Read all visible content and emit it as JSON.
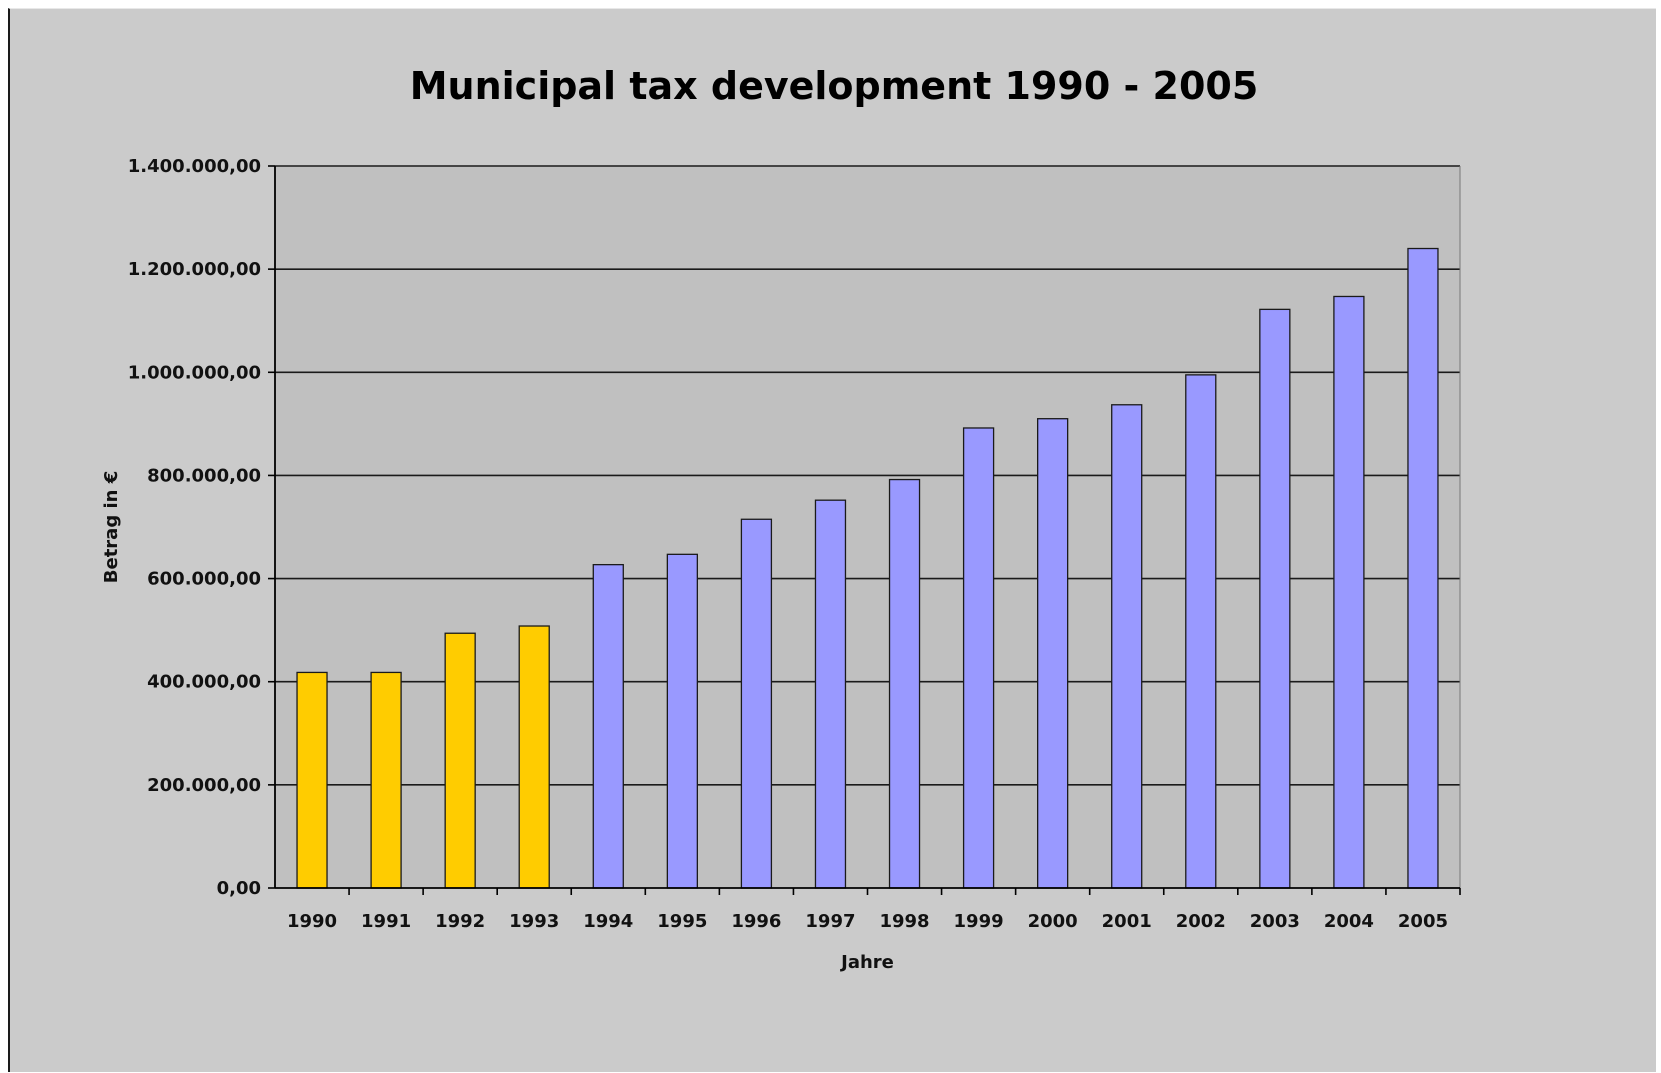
{
  "chart_data": {
    "type": "bar",
    "title": "Municipal tax development 1990 - 2005",
    "xlabel": "Jahre",
    "ylabel": "Betrag in €",
    "ylim": [
      0,
      1400000
    ],
    "yticks": [
      "0,00",
      "200.000,00",
      "400.000,00",
      "600.000,00",
      "800.000,00",
      "1.000.000,00",
      "1.200.000,00",
      "1.400.000,00"
    ],
    "grid": true,
    "categories": [
      "1990",
      "1991",
      "1992",
      "1993",
      "1994",
      "1995",
      "1996",
      "1997",
      "1998",
      "1999",
      "2000",
      "2001",
      "2002",
      "2003",
      "2004",
      "2005"
    ],
    "values": [
      418000,
      418000,
      494000,
      508000,
      627000,
      647000,
      715000,
      752000,
      792000,
      892000,
      910000,
      937000,
      995000,
      1122000,
      1147000,
      1240000
    ],
    "bar_colors": [
      "#ffcc00",
      "#ffcc00",
      "#ffcc00",
      "#ffcc00",
      "#9999ff",
      "#9999ff",
      "#9999ff",
      "#9999ff",
      "#9999ff",
      "#9999ff",
      "#9999ff",
      "#9999ff",
      "#9999ff",
      "#9999ff",
      "#9999ff",
      "#9999ff"
    ],
    "plot_background": "#c0c0c0",
    "chart_background": "#cbcbcb"
  }
}
